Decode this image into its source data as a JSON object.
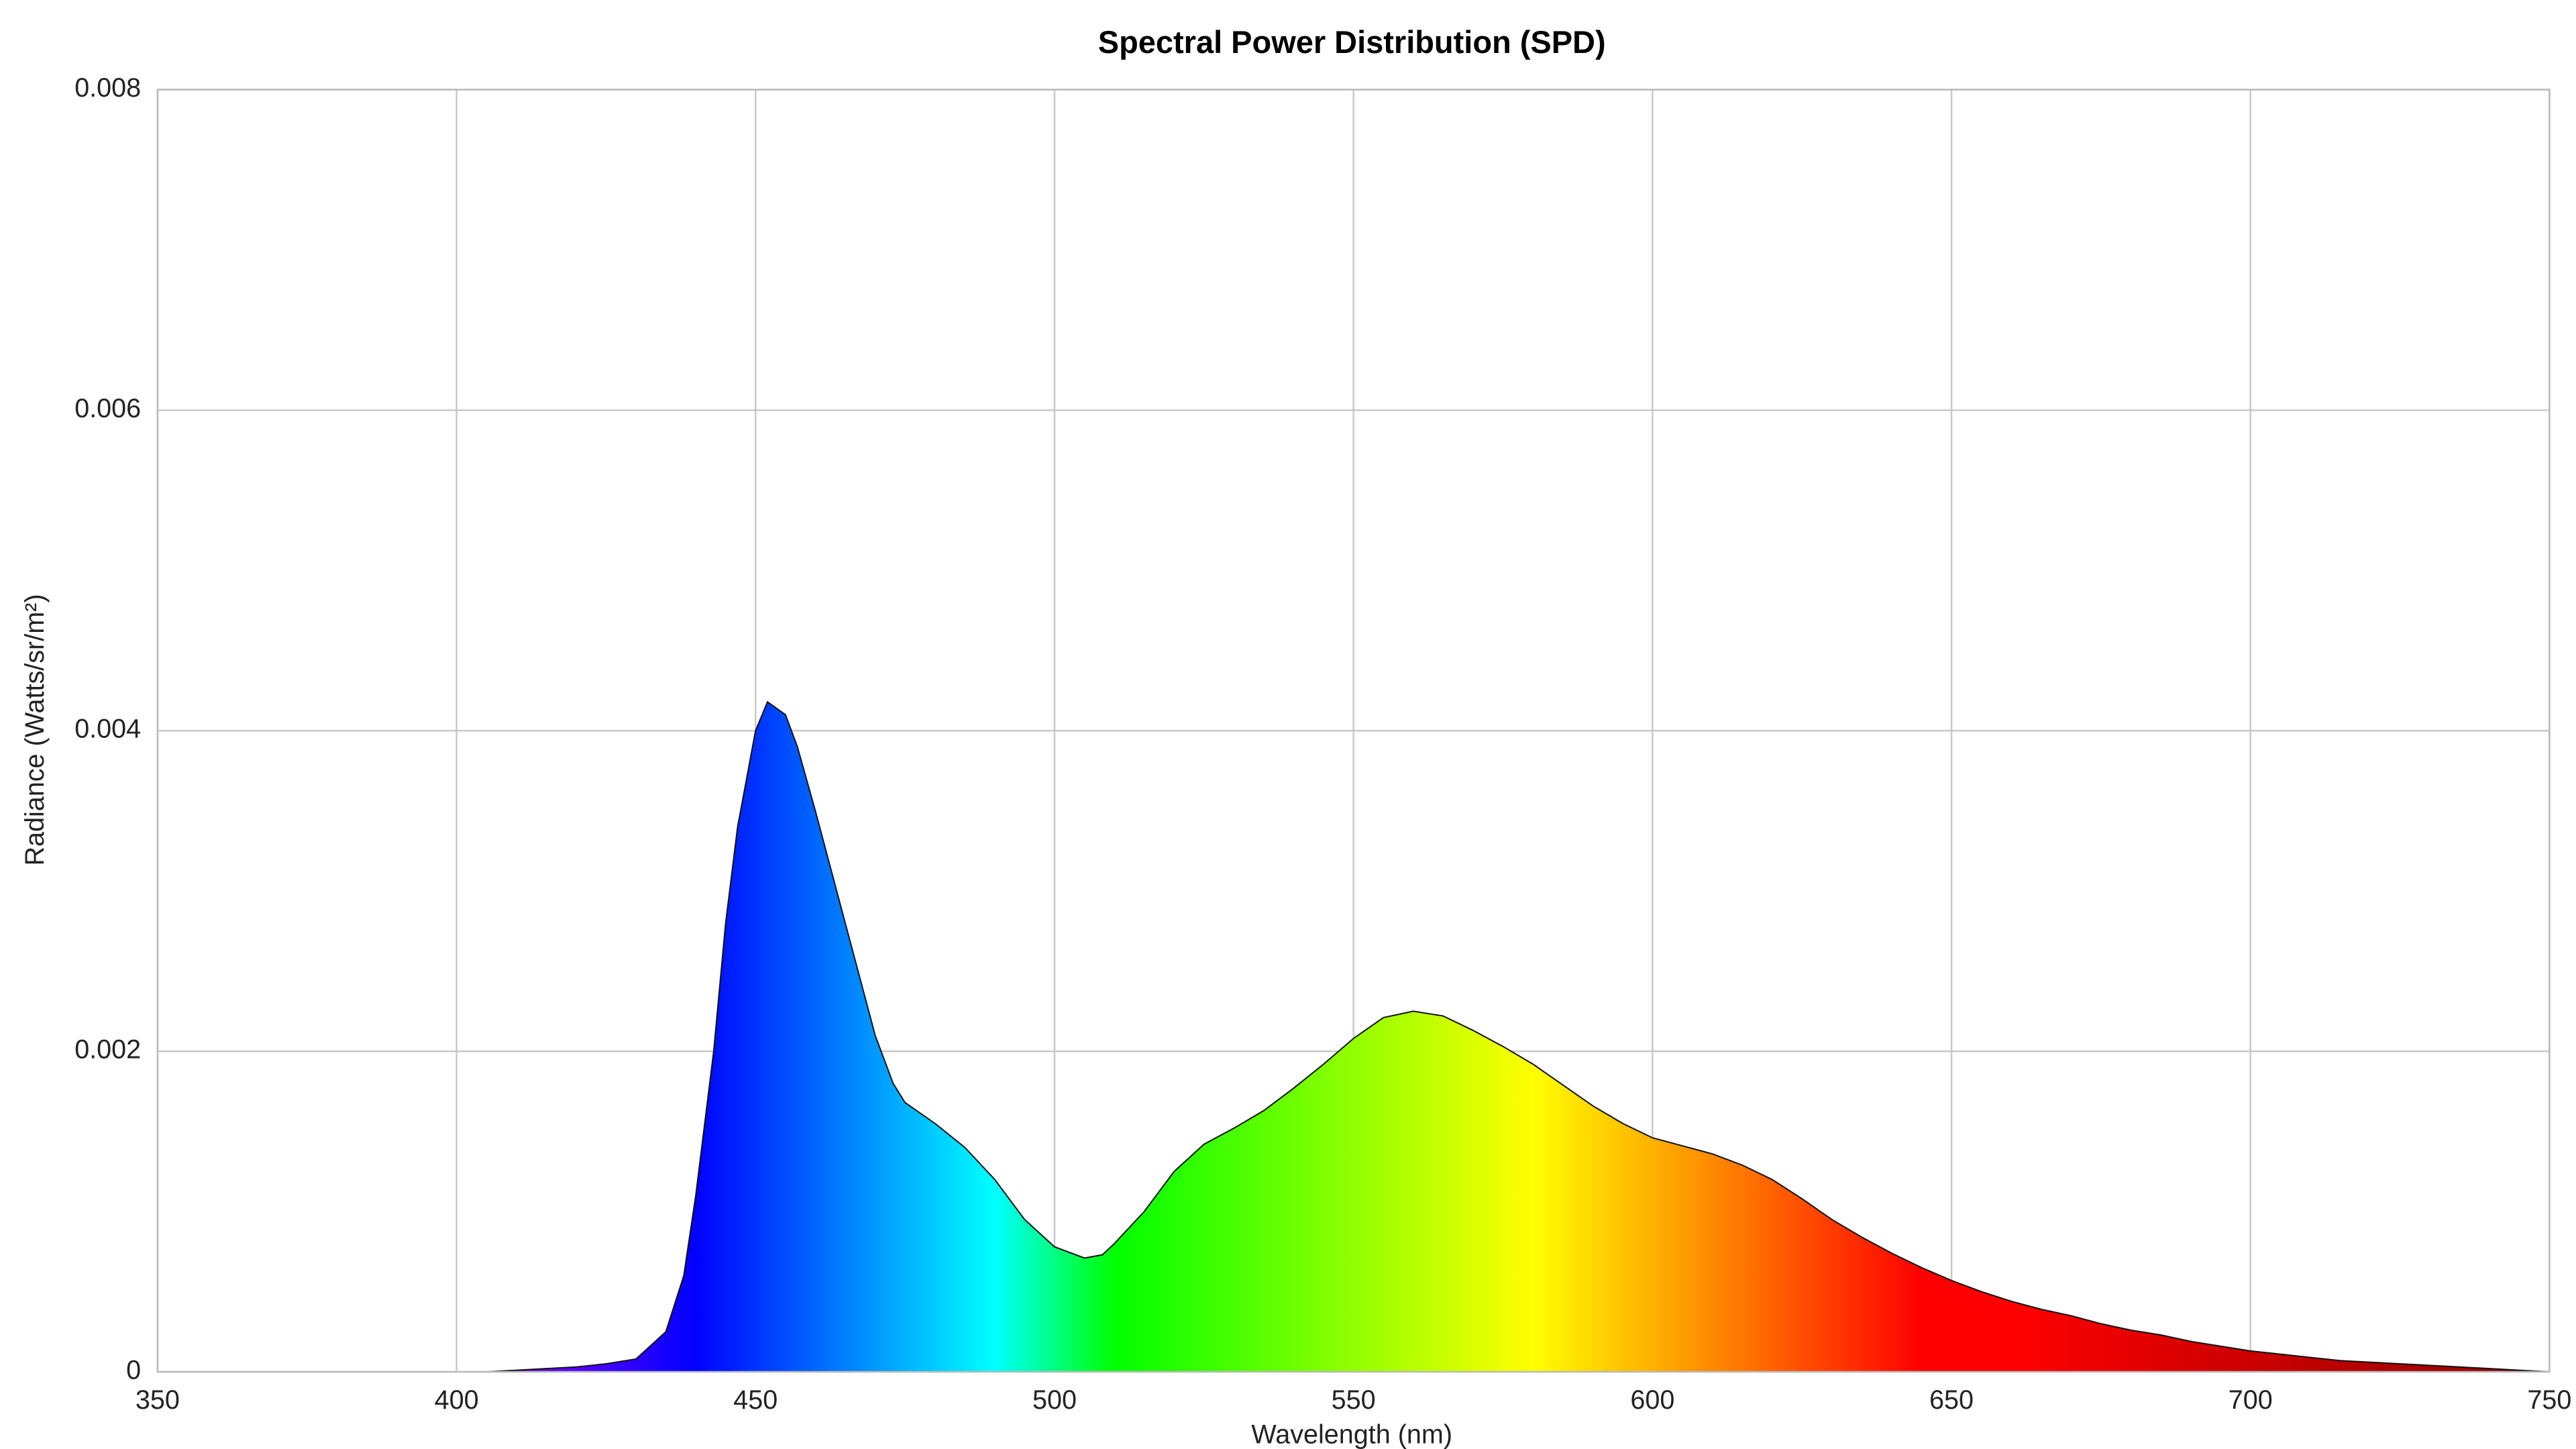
{
  "chart_data": {
    "type": "area",
    "title": "Spectral Power Distribution (SPD)",
    "x_label": "Wavelength (nm)",
    "y_label": "Radiance (Watts/sr/m²)",
    "x": [
      350,
      355,
      360,
      365,
      370,
      375,
      380,
      385,
      390,
      395,
      400,
      405,
      410,
      415,
      420,
      425,
      430,
      435,
      438,
      440,
      443,
      445,
      447,
      450,
      452,
      455,
      457,
      460,
      465,
      470,
      473,
      475,
      480,
      485,
      490,
      495,
      500,
      505,
      508,
      510,
      515,
      520,
      525,
      530,
      535,
      540,
      545,
      550,
      555,
      560,
      565,
      570,
      575,
      580,
      585,
      590,
      595,
      600,
      605,
      610,
      615,
      620,
      625,
      630,
      635,
      640,
      645,
      650,
      655,
      660,
      665,
      670,
      675,
      680,
      685,
      690,
      695,
      700,
      705,
      710,
      715,
      720,
      725,
      730,
      735,
      740,
      745,
      750
    ],
    "values": [
      0,
      0,
      0,
      0,
      0,
      0,
      0,
      0,
      0,
      0,
      0,
      0,
      1e-05,
      2e-05,
      3e-05,
      5e-05,
      8e-05,
      0.00025,
      0.0006,
      0.0011,
      0.002,
      0.0028,
      0.0034,
      0.004,
      0.00418,
      0.0041,
      0.0039,
      0.0035,
      0.0028,
      0.0021,
      0.0018,
      0.00168,
      0.00155,
      0.0014,
      0.0012,
      0.00095,
      0.00078,
      0.00071,
      0.00073,
      0.0008,
      0.001,
      0.00125,
      0.00142,
      0.00152,
      0.00163,
      0.00177,
      0.00192,
      0.00208,
      0.00221,
      0.00225,
      0.00222,
      0.00213,
      0.00203,
      0.00192,
      0.00179,
      0.00166,
      0.00155,
      0.00146,
      0.00141,
      0.00136,
      0.00129,
      0.0012,
      0.00108,
      0.00095,
      0.00084,
      0.00074,
      0.00065,
      0.00057,
      0.0005,
      0.00044,
      0.00039,
      0.00035,
      0.0003,
      0.00026,
      0.00023,
      0.00019,
      0.00016,
      0.00013,
      0.00011,
      9e-05,
      7e-05,
      6e-05,
      5e-05,
      4e-05,
      3e-05,
      2e-05,
      1e-05,
      0
    ],
    "xlim": [
      350,
      750
    ],
    "xticks": [
      350,
      400,
      450,
      500,
      550,
      600,
      650,
      700,
      750
    ],
    "ylim": [
      0,
      0.008
    ],
    "yticks": [
      0,
      0.002,
      0.004,
      0.006,
      0.008
    ],
    "grid": true
  }
}
